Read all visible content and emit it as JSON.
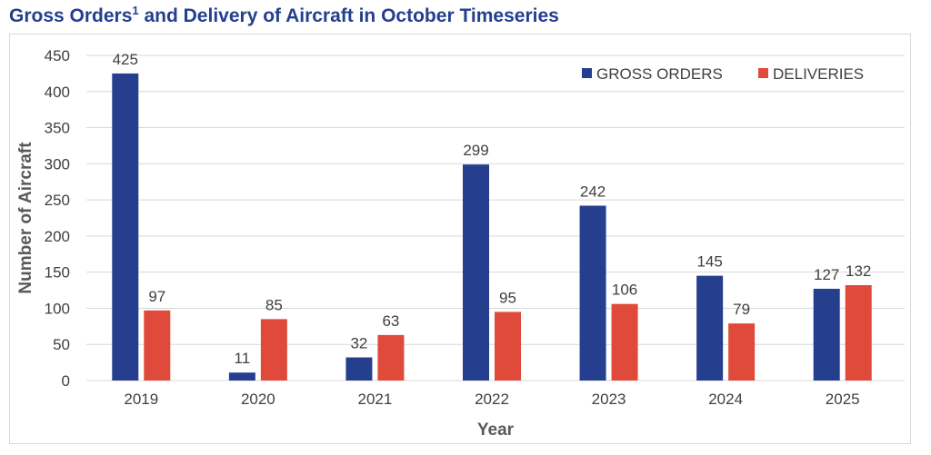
{
  "title": {
    "main_a": "Gross Orders",
    "sup": "1",
    "main_b": " and Delivery of Aircraft in October Timeseries"
  },
  "chart_data": {
    "type": "bar",
    "title": "Gross Orders1 and Delivery of Aircraft in October Timeseries",
    "xlabel": "Year",
    "ylabel": "Number of Aircraft",
    "ylim": [
      0,
      450
    ],
    "yticks": [
      0,
      50,
      100,
      150,
      200,
      250,
      300,
      350,
      400,
      450
    ],
    "grid": true,
    "legend_position": "top-right",
    "categories": [
      "2019",
      "2020",
      "2021",
      "2022",
      "2023",
      "2024",
      "2025"
    ],
    "series": [
      {
        "name": "GROSS ORDERS",
        "color": "#253f8e",
        "values": [
          425,
          11,
          32,
          299,
          242,
          145,
          127
        ]
      },
      {
        "name": "DELIVERIES",
        "color": "#e04a3a",
        "values": [
          97,
          85,
          63,
          95,
          106,
          79,
          132
        ]
      }
    ]
  }
}
